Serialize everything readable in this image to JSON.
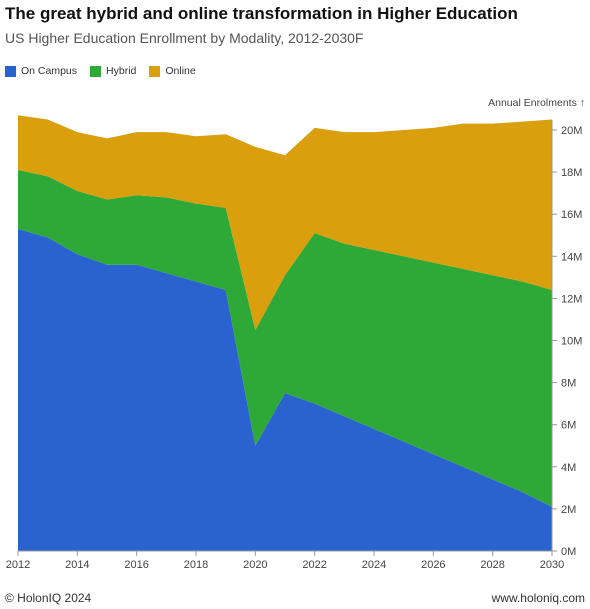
{
  "title": "The great hybrid and online transformation in Higher Education",
  "subtitle": "US Higher Education Enrollment by Modality, 2012-2030F",
  "footer": {
    "left": "© HolonIQ 2024",
    "right": "www.holoniq.com"
  },
  "colors": {
    "on_campus": "#2a63cf",
    "hybrid": "#2ea836",
    "online": "#d99f0c"
  },
  "chart_data": {
    "type": "area",
    "stacked": true,
    "x": [
      2012,
      2013,
      2014,
      2015,
      2016,
      2017,
      2018,
      2019,
      2020,
      2021,
      2022,
      2023,
      2024,
      2025,
      2026,
      2027,
      2028,
      2029,
      2030
    ],
    "series": [
      {
        "name": "On Campus",
        "color": "#2a63cf",
        "values": [
          15.3,
          14.9,
          14.1,
          13.6,
          13.6,
          13.2,
          12.8,
          12.4,
          5.0,
          7.5,
          7.0,
          6.4,
          5.8,
          5.2,
          4.6,
          4.0,
          3.4,
          2.8,
          2.1
        ]
      },
      {
        "name": "Hybrid",
        "color": "#2ea836",
        "values": [
          2.8,
          2.9,
          3.0,
          3.1,
          3.3,
          3.6,
          3.7,
          3.9,
          5.5,
          5.6,
          8.1,
          8.2,
          8.5,
          8.8,
          9.1,
          9.4,
          9.7,
          10.0,
          10.3
        ]
      },
      {
        "name": "Online",
        "color": "#d99f0c",
        "values": [
          2.6,
          2.7,
          2.8,
          2.9,
          3.0,
          3.1,
          3.2,
          3.5,
          8.7,
          5.7,
          5.0,
          5.3,
          5.6,
          6.0,
          6.4,
          6.9,
          7.2,
          7.6,
          8.1
        ]
      }
    ],
    "xticks": [
      "2012",
      "2014",
      "2016",
      "2018",
      "2020",
      "2022",
      "2024",
      "2026",
      "2028",
      "2030"
    ],
    "yticks": [
      "0M",
      "2M",
      "4M",
      "6M",
      "8M",
      "10M",
      "12M",
      "14M",
      "16M",
      "18M",
      "20M"
    ],
    "ylabel": "Annual Enrolments ↑",
    "xlim": [
      2012,
      2030
    ],
    "ylim": [
      0,
      20
    ],
    "grid": false,
    "legend_position": "top-left"
  }
}
